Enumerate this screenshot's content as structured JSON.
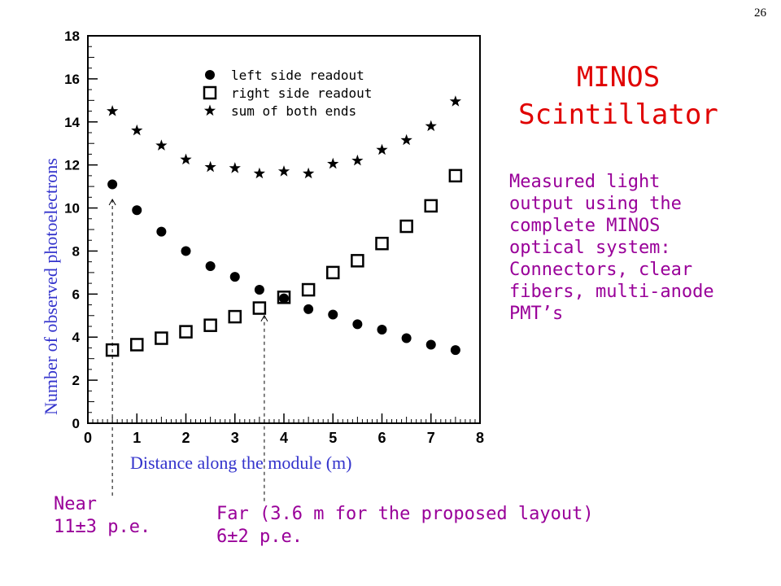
{
  "page_number": "26",
  "title_lines": [
    "MINOS",
    "Scintillator"
  ],
  "description_lines": [
    "Measured light",
    "output using the",
    "complete MINOS",
    "optical system:",
    "Connectors, clear",
    "fibers, multi-anode",
    "PMT’s"
  ],
  "near_callout": [
    "Near",
    "11±3 p.e."
  ],
  "far_callout": [
    "Far (3.6 m for the proposed layout)",
    "6±2 p.e."
  ],
  "colors": {
    "title": "#e00000",
    "text": "#990099",
    "axis_label": "#3333cc"
  },
  "chart_data": {
    "type": "scatter",
    "title": "",
    "xlabel": "Distance along the module (m)",
    "ylabel": "Number of observed photoelectrons",
    "xlim": [
      0,
      8
    ],
    "ylim": [
      0,
      18
    ],
    "x_ticks": [
      0,
      1,
      2,
      3,
      4,
      5,
      6,
      7,
      8
    ],
    "y_ticks": [
      0,
      2,
      4,
      6,
      8,
      10,
      12,
      14,
      16,
      18
    ],
    "legend_position": "top-left",
    "markers": [
      {
        "label": "Near",
        "x": 0.5
      },
      {
        "label": "Far",
        "x": 3.6
      }
    ],
    "series": [
      {
        "name": "left side readout",
        "marker": "filled-circle",
        "points": [
          [
            0.5,
            11.1
          ],
          [
            1.0,
            9.9
          ],
          [
            1.5,
            8.9
          ],
          [
            2.0,
            8.0
          ],
          [
            2.5,
            7.3
          ],
          [
            3.0,
            6.8
          ],
          [
            3.5,
            6.2
          ],
          [
            4.0,
            5.8
          ],
          [
            4.5,
            5.3
          ],
          [
            5.0,
            5.05
          ],
          [
            5.5,
            4.6
          ],
          [
            6.0,
            4.35
          ],
          [
            6.5,
            3.95
          ],
          [
            7.0,
            3.65
          ],
          [
            7.5,
            3.4
          ]
        ]
      },
      {
        "name": "right side readout",
        "marker": "open-square",
        "points": [
          [
            0.5,
            3.4
          ],
          [
            1.0,
            3.65
          ],
          [
            1.5,
            3.95
          ],
          [
            2.0,
            4.25
          ],
          [
            2.5,
            4.55
          ],
          [
            3.0,
            4.95
          ],
          [
            3.5,
            5.35
          ],
          [
            4.0,
            5.85
          ],
          [
            4.5,
            6.2
          ],
          [
            5.0,
            7.0
          ],
          [
            5.5,
            7.55
          ],
          [
            6.0,
            8.35
          ],
          [
            6.5,
            9.15
          ],
          [
            7.0,
            10.1
          ],
          [
            7.5,
            11.5
          ]
        ]
      },
      {
        "name": "sum     of both ends",
        "marker": "star",
        "points": [
          [
            0.5,
            14.5
          ],
          [
            1.0,
            13.6
          ],
          [
            1.5,
            12.9
          ],
          [
            2.0,
            12.25
          ],
          [
            2.5,
            11.9
          ],
          [
            3.0,
            11.85
          ],
          [
            3.5,
            11.6
          ],
          [
            4.0,
            11.7
          ],
          [
            4.5,
            11.6
          ],
          [
            5.0,
            12.05
          ],
          [
            5.5,
            12.2
          ],
          [
            6.0,
            12.7
          ],
          [
            6.5,
            13.15
          ],
          [
            7.0,
            13.8
          ],
          [
            7.5,
            14.95
          ]
        ]
      }
    ]
  }
}
